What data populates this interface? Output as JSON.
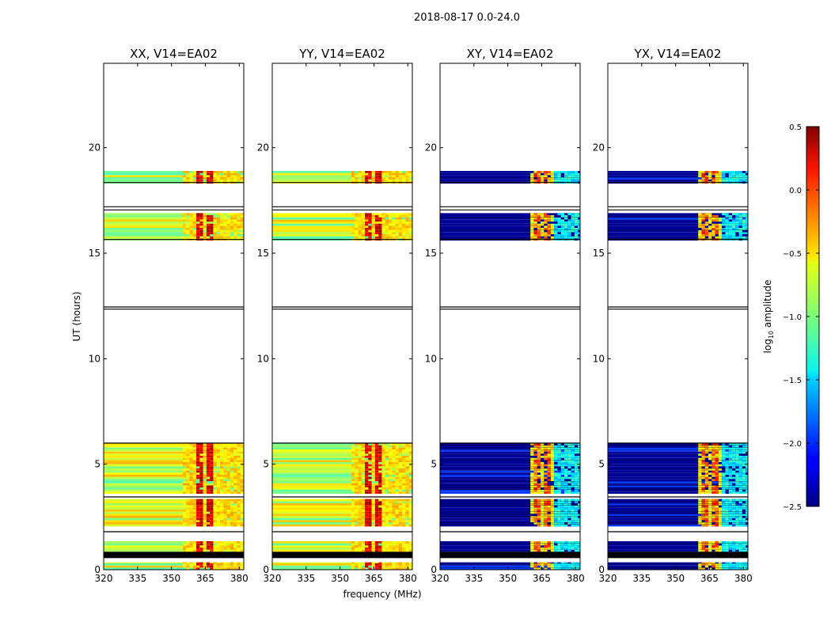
{
  "figure": {
    "suptitle": "2018-08-17 0.0-24.0",
    "xlabel": "frequency (MHz)",
    "ylabel": "UT (hours)"
  },
  "colorbar": {
    "label_prefix": "log",
    "label_sub": "10",
    "label_suffix": " amplitude",
    "range": [
      -2.5,
      0.5
    ],
    "ticks": [
      "0.5",
      "0.0",
      "−0.5",
      "−1.0",
      "−1.5",
      "−2.0",
      "−2.5"
    ],
    "colormap": "jet"
  },
  "chart_data": {
    "type": "heatmap",
    "xlim": [
      320,
      382
    ],
    "ylim": [
      0,
      24
    ],
    "x_ticks": [
      320,
      335,
      350,
      365,
      380
    ],
    "x_tick_labels": [
      "320",
      "335",
      "350",
      "365",
      "380"
    ],
    "y_ticks": [
      0,
      5,
      10,
      15,
      20
    ],
    "y_tick_labels": [
      "0",
      "5",
      "10",
      "15",
      "20"
    ],
    "panels": [
      {
        "title": "XX, V14=EA02",
        "pol": "parallel"
      },
      {
        "title": "YY, V14=EA02",
        "pol": "parallel"
      },
      {
        "title": "XY, V14=EA02",
        "pol": "cross"
      },
      {
        "title": "YX, V14=EA02",
        "pol": "cross"
      }
    ],
    "observed_time_blocks_hours": [
      [
        0.0,
        0.35
      ],
      [
        0.85,
        1.35
      ],
      [
        2.05,
        3.35
      ],
      [
        3.6,
        6.0
      ],
      [
        15.6,
        16.9
      ],
      [
        18.3,
        18.9
      ]
    ],
    "black_lines_hours": [
      0.7,
      1.8,
      3.45,
      6.0,
      12.35,
      12.45,
      15.65,
      17.05,
      17.2,
      18.35
    ],
    "solid_black_band_hours": [
      0.55,
      0.85
    ],
    "bright_frequency_bands_mhz": [
      [
        361,
        363.5
      ],
      [
        365,
        368.5
      ]
    ],
    "cross_pol_bright_start_mhz": 360
  }
}
